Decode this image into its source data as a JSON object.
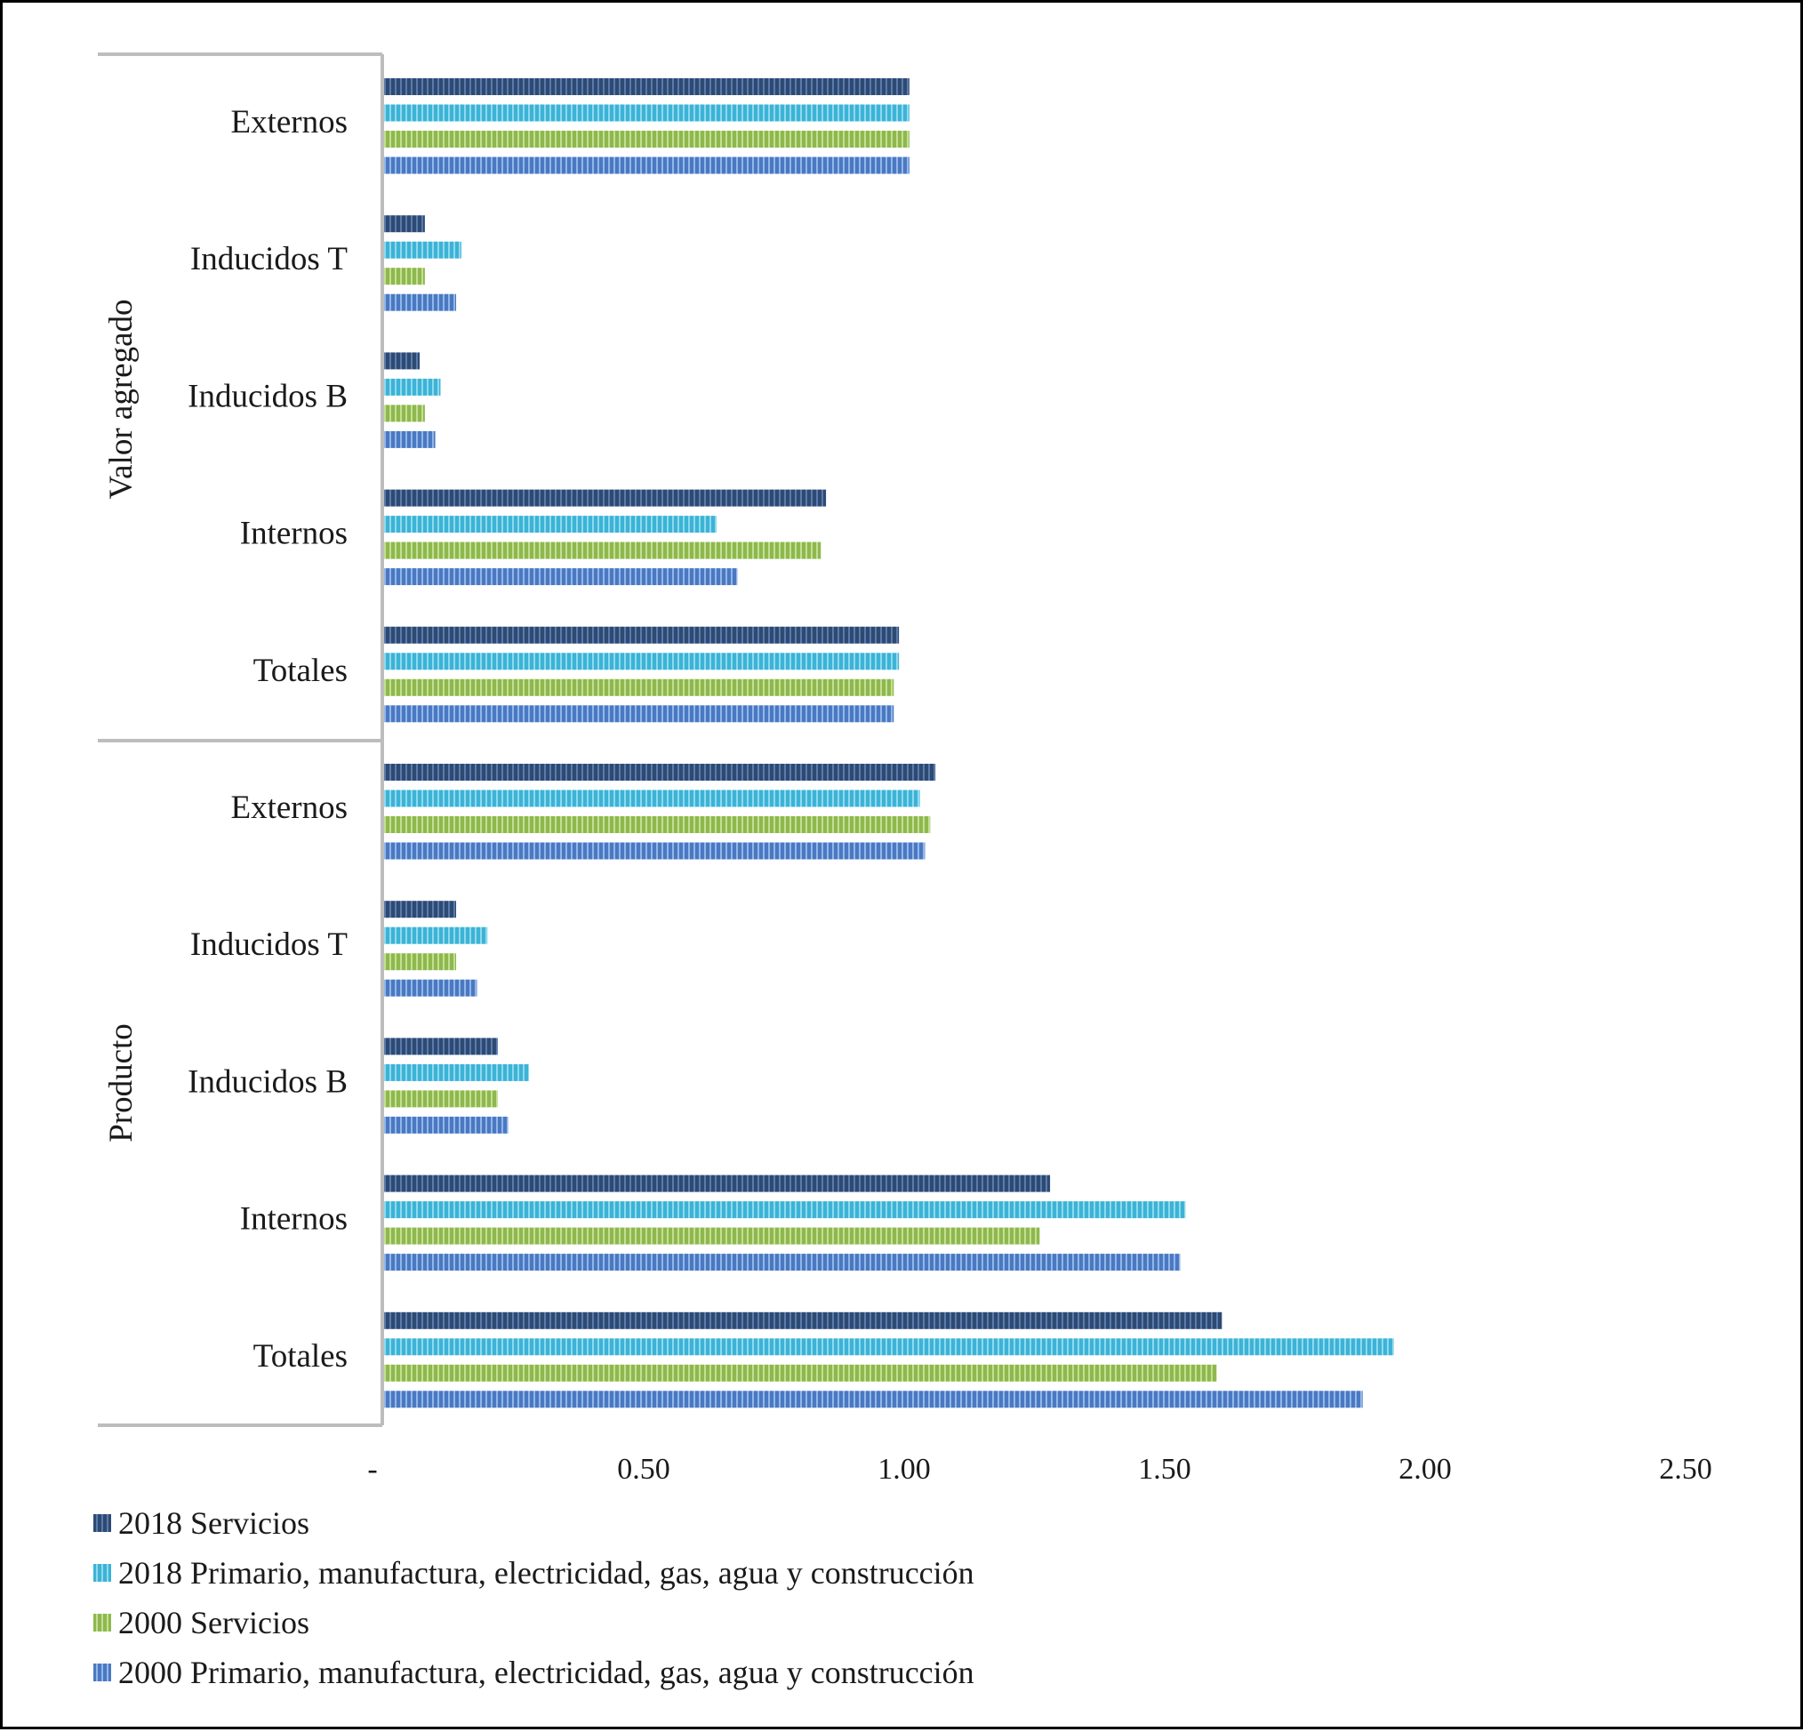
{
  "chart_data": {
    "type": "bar",
    "orientation": "horizontal",
    "title": "",
    "xlabel": "",
    "ylabel": "",
    "xlim": [
      0,
      2.5
    ],
    "grid": false,
    "legend_position": "bottom-left",
    "x_ticks": [
      "-",
      "0.50",
      "1.00",
      "1.50",
      "2.00",
      "2.50"
    ],
    "x_tick_values": [
      0,
      0.5,
      1.0,
      1.5,
      2.0,
      2.5
    ],
    "groups": [
      {
        "name": "Valor agregado",
        "categories": [
          "Externos",
          "Inducidos T",
          "Inducidos B",
          "Internos",
          "Totales"
        ]
      },
      {
        "name": "Producto",
        "categories": [
          "Externos",
          "Inducidos T",
          "Inducidos B",
          "Internos",
          "Totales"
        ]
      }
    ],
    "series": [
      {
        "name": "2018 Servicios",
        "color": "#2e4a73",
        "stripe": "#5a7bab",
        "values": [
          1.01,
          0.08,
          0.07,
          0.85,
          0.99,
          1.06,
          0.14,
          0.22,
          1.28,
          1.61
        ]
      },
      {
        "name": "2018 Primario, manufactura, electricidad, gas, agua y construcción",
        "color": "#3cb3d6",
        "stripe": "#8fd9ee",
        "values": [
          1.01,
          0.15,
          0.11,
          0.64,
          0.99,
          1.03,
          0.2,
          0.28,
          1.54,
          1.94
        ]
      },
      {
        "name": "2000 Servicios",
        "color": "#8eb84e",
        "stripe": "#c3df93",
        "values": [
          1.01,
          0.08,
          0.08,
          0.84,
          0.98,
          1.05,
          0.14,
          0.22,
          1.26,
          1.6
        ]
      },
      {
        "name": "2000 Primario, manufactura, electricidad, gas, agua y construcción",
        "color": "#4a79c2",
        "stripe": "#93b6e8",
        "values": [
          1.01,
          0.14,
          0.1,
          0.68,
          0.98,
          1.04,
          0.18,
          0.24,
          1.53,
          1.88
        ]
      }
    ]
  }
}
